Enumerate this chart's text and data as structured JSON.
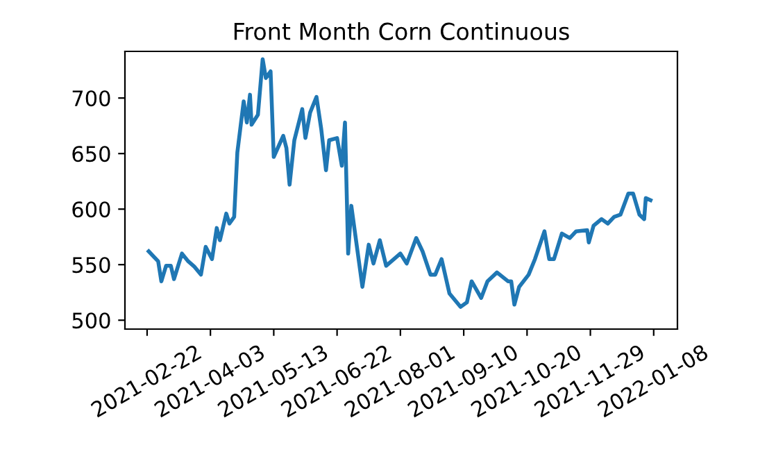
{
  "chart_data": {
    "type": "line",
    "title": "Front Month Corn Continuous",
    "x": [
      "2021-02-23",
      "2021-03-01",
      "2021-03-03",
      "2021-03-06",
      "2021-03-09",
      "2021-03-11",
      "2021-03-16",
      "2021-03-20",
      "2021-03-24",
      "2021-03-28",
      "2021-03-31",
      "2021-04-04",
      "2021-04-07",
      "2021-04-09",
      "2021-04-13",
      "2021-04-15",
      "2021-04-18",
      "2021-04-20",
      "2021-04-24",
      "2021-04-26",
      "2021-04-28",
      "2021-04-29",
      "2021-05-03",
      "2021-05-06",
      "2021-05-08",
      "2021-05-11",
      "2021-05-13",
      "2021-05-19",
      "2021-05-21",
      "2021-05-23",
      "2021-05-26",
      "2021-05-31",
      "2021-06-02",
      "2021-06-05",
      "2021-06-09",
      "2021-06-12",
      "2021-06-15",
      "2021-06-17",
      "2021-06-22",
      "2021-06-25",
      "2021-06-27",
      "2021-06-29",
      "2021-07-01",
      "2021-07-08",
      "2021-07-12",
      "2021-07-15",
      "2021-07-19",
      "2021-07-23",
      "2021-08-01",
      "2021-08-05",
      "2021-08-11",
      "2021-08-15",
      "2021-08-20",
      "2021-08-23",
      "2021-08-27",
      "2021-09-01",
      "2021-09-08",
      "2021-09-12",
      "2021-09-15",
      "2021-09-21",
      "2021-09-25",
      "2021-10-01",
      "2021-10-08",
      "2021-10-10",
      "2021-10-12",
      "2021-10-15",
      "2021-10-21",
      "2021-10-25",
      "2021-10-31",
      "2021-11-03",
      "2021-11-06",
      "2021-11-11",
      "2021-11-16",
      "2021-11-20",
      "2021-11-27",
      "2021-11-28",
      "2021-12-01",
      "2021-12-06",
      "2021-12-10",
      "2021-12-14",
      "2021-12-18",
      "2021-12-23",
      "2021-12-26",
      "2021-12-30",
      "2022-01-02",
      "2022-01-03",
      "2022-01-06"
    ],
    "series": [
      {
        "color": "#1f77b4",
        "values": [
          562,
          553,
          535,
          549,
          549,
          537,
          560,
          553,
          548,
          541,
          566,
          555,
          583,
          572,
          596,
          587,
          593,
          651,
          697,
          678,
          703,
          676,
          685,
          735,
          718,
          724,
          647,
          666,
          655,
          622,
          662,
          690,
          664,
          687,
          701,
          672,
          635,
          662,
          664,
          639,
          678,
          560,
          603,
          530,
          568,
          551,
          572,
          549,
          560,
          551,
          574,
          562,
          541,
          541,
          555,
          524,
          512,
          516,
          535,
          520,
          535,
          543,
          535,
          535,
          514,
          530,
          541,
          555,
          580,
          555,
          555,
          578,
          574,
          580,
          581,
          570,
          585,
          591,
          587,
          593,
          595,
          614,
          614,
          595,
          591,
          610,
          608
        ]
      }
    ],
    "xlim": [
      "2021-02-08",
      "2022-01-23"
    ],
    "xticks": [
      "2021-02-22",
      "2021-04-03",
      "2021-05-13",
      "2021-06-22",
      "2021-08-01",
      "2021-09-10",
      "2021-10-20",
      "2021-11-29",
      "2022-01-08"
    ],
    "ylim": [
      492,
      742
    ],
    "yticks": [
      500,
      550,
      600,
      650,
      700
    ],
    "grid": false,
    "line_style": "solid"
  }
}
